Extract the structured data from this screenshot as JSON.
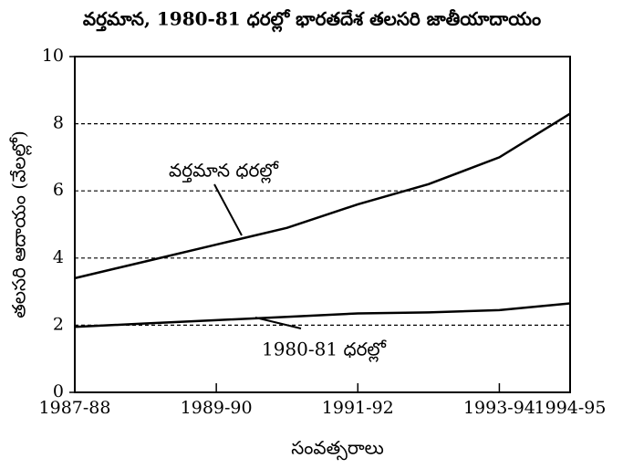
{
  "chart_data": {
    "type": "line",
    "title": "వర్తమాన, 1980-81 ధరల్లో భారతదేశ తలసరి జాతీయాదాయం",
    "xlabel": "సంవత్సరాలు",
    "ylabel": "తలసరి ఆదాయం (వేలల్లో)",
    "categories": [
      "1987-88",
      null,
      "1989-90",
      null,
      "1991-92",
      null,
      "1993-94",
      "1994-95"
    ],
    "series": [
      {
        "name": "వర్తమాన ధరల్లో",
        "color": "#000000",
        "values": [
          3.4,
          3.9,
          4.4,
          4.9,
          5.6,
          6.2,
          7.0,
          8.3
        ]
      },
      {
        "name": "1980-81 ధరల్లో",
        "color": "#000000",
        "values": [
          1.95,
          2.05,
          2.15,
          2.25,
          2.35,
          2.38,
          2.45,
          2.65
        ]
      }
    ],
    "ylim": [
      0,
      10
    ],
    "yticks": [
      0,
      2,
      4,
      6,
      8,
      10
    ],
    "grid": true
  }
}
